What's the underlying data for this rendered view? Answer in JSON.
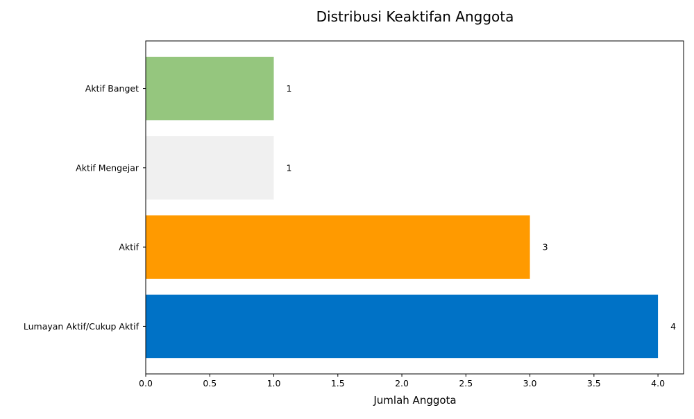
{
  "chart_data": {
    "type": "bar",
    "orientation": "horizontal",
    "title": "Distribusi Keaktifan Anggota",
    "xlabel": "Jumlah Anggota",
    "ylabel": "",
    "categories": [
      "Lumayan Aktif/Cukup Aktif",
      "Aktif",
      "Aktif Mengejar",
      "Aktif Banget"
    ],
    "values": [
      4,
      3,
      1,
      1
    ],
    "colors": [
      "#0072c6",
      "#ff9a00",
      "#f0f0f0",
      "#95c67e"
    ],
    "data_labels": [
      "4",
      "3",
      "1",
      "1"
    ],
    "xlim": [
      0,
      4.2
    ],
    "xticks": [
      0.0,
      0.5,
      1.0,
      1.5,
      2.0,
      2.5,
      3.0,
      3.5,
      4.0
    ],
    "xtick_labels": [
      "0.0",
      "0.5",
      "1.0",
      "1.5",
      "2.0",
      "2.5",
      "3.0",
      "3.5",
      "4.0"
    ],
    "grid": false,
    "legend": "none"
  }
}
